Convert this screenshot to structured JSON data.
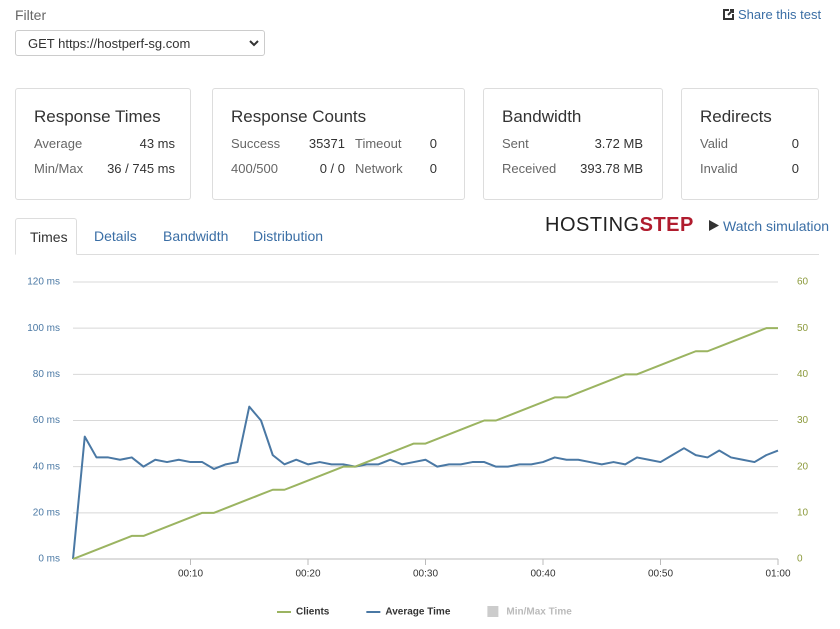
{
  "filter": {
    "label": "Filter",
    "value": "GET https://hostperf-sg.com"
  },
  "share": "Share this test",
  "cards": [
    {
      "title": "Response Times",
      "rows": [
        [
          "Average",
          "43 ms"
        ],
        [
          "Min/Max",
          "36 / 745 ms"
        ]
      ]
    },
    {
      "title": "Response Counts",
      "rows": [
        [
          "Success",
          "35371",
          "Timeout",
          "0"
        ],
        [
          "400/500",
          "0 / 0",
          "Network",
          "0"
        ]
      ]
    },
    {
      "title": "Bandwidth",
      "rows": [
        [
          "Sent",
          "3.72 MB"
        ],
        [
          "Received",
          "393.78 MB"
        ]
      ]
    },
    {
      "title": "Redirects",
      "rows": [
        [
          "Valid",
          "0"
        ],
        [
          "Invalid",
          "0"
        ]
      ]
    }
  ],
  "tabs": [
    "Times",
    "Details",
    "Bandwidth",
    "Distribution"
  ],
  "logo": {
    "part1": "HOSTING",
    "part2": "STEP"
  },
  "watch": "Watch simulation",
  "chart_data": {
    "type": "line",
    "x": [
      0,
      1,
      2,
      3,
      4,
      5,
      6,
      7,
      8,
      9,
      10,
      11,
      12,
      13,
      14,
      15,
      16,
      17,
      18,
      19,
      20,
      21,
      22,
      23,
      24,
      25,
      26,
      27,
      28,
      29,
      30,
      31,
      32,
      33,
      34,
      35,
      36,
      37,
      38,
      39,
      40,
      41,
      42,
      43,
      44,
      45,
      46,
      47,
      48,
      49,
      50,
      51,
      52,
      53,
      54,
      55,
      56,
      57,
      58,
      59,
      60
    ],
    "xlim": [
      0,
      60
    ],
    "xticks": [
      {
        "value": 10,
        "label": "00:10"
      },
      {
        "value": 20,
        "label": "00:20"
      },
      {
        "value": 30,
        "label": "00:30"
      },
      {
        "value": 40,
        "label": "00:40"
      },
      {
        "value": 50,
        "label": "00:50"
      },
      {
        "value": 60,
        "label": "01:00"
      }
    ],
    "ylim": [
      0,
      120
    ],
    "yticks": [
      {
        "value": 0,
        "label": "0 ms"
      },
      {
        "value": 20,
        "label": "20 ms"
      },
      {
        "value": 40,
        "label": "40 ms"
      },
      {
        "value": 60,
        "label": "60 ms"
      },
      {
        "value": 80,
        "label": "80 ms"
      },
      {
        "value": 100,
        "label": "100 ms"
      },
      {
        "value": 120,
        "label": "120 ms"
      }
    ],
    "y2lim": [
      0,
      60
    ],
    "y2ticks": [
      0,
      10,
      20,
      30,
      40,
      50,
      60
    ],
    "grid": true,
    "series": [
      {
        "name": "Clients",
        "color": "#9bb461",
        "axis": "y2",
        "values": [
          0,
          1,
          2,
          3,
          4,
          5,
          5,
          6,
          7,
          8,
          9,
          10,
          10,
          11,
          12,
          13,
          14,
          15,
          15,
          16,
          17,
          18,
          19,
          20,
          20,
          21,
          22,
          23,
          24,
          25,
          25,
          26,
          27,
          28,
          29,
          30,
          30,
          31,
          32,
          33,
          34,
          35,
          35,
          36,
          37,
          38,
          39,
          40,
          40,
          41,
          42,
          43,
          44,
          45,
          45,
          46,
          47,
          48,
          49,
          50,
          50
        ]
      },
      {
        "name": "Average Time",
        "color": "#4a78a4",
        "values": [
          0,
          53,
          44,
          44,
          43,
          44,
          40,
          43,
          42,
          43,
          42,
          42,
          39,
          41,
          42,
          66,
          60,
          45,
          41,
          43,
          41,
          42,
          41,
          41,
          40,
          41,
          41,
          43,
          41,
          42,
          43,
          40,
          41,
          41,
          42,
          42,
          40,
          40,
          41,
          41,
          42,
          44,
          43,
          43,
          42,
          41,
          42,
          41,
          44,
          43,
          42,
          45,
          48,
          45,
          44,
          47,
          44,
          43,
          42,
          45,
          47
        ]
      }
    ],
    "legend_inactive": [
      {
        "name": "Min/Max Time",
        "color": "#cccccc"
      }
    ]
  }
}
